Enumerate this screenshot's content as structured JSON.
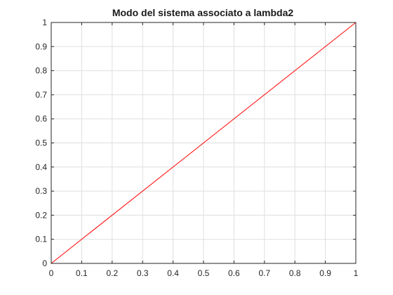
{
  "chart_data": {
    "type": "line",
    "title": "Modo del sistema associato a lambda2",
    "xlabel": "",
    "ylabel": "",
    "xlim": [
      0,
      1
    ],
    "ylim": [
      0,
      1
    ],
    "grid": true,
    "xticks": [
      0,
      0.1,
      0.2,
      0.3,
      0.4,
      0.5,
      0.6,
      0.7,
      0.8,
      0.9,
      1
    ],
    "yticks": [
      0,
      0.1,
      0.2,
      0.3,
      0.4,
      0.5,
      0.6,
      0.7,
      0.8,
      0.9,
      1
    ],
    "xtick_labels": [
      "0",
      "0.1",
      "0.2",
      "0.3",
      "0.4",
      "0.5",
      "0.6",
      "0.7",
      "0.8",
      "0.9",
      "1"
    ],
    "ytick_labels": [
      "0",
      "0.1",
      "0.2",
      "0.3",
      "0.4",
      "0.5",
      "0.6",
      "0.7",
      "0.8",
      "0.9",
      "1"
    ],
    "series": [
      {
        "x": [
          0,
          1
        ],
        "y": [
          0,
          1
        ],
        "color": "#ff0000"
      }
    ]
  }
}
